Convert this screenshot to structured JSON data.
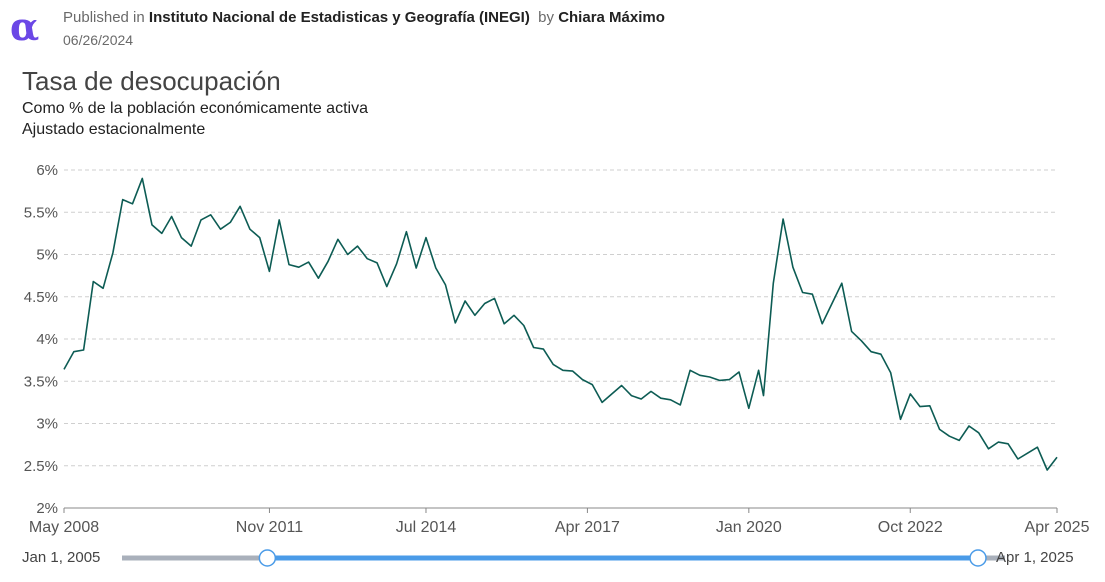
{
  "header": {
    "logo_icon": "alpha-logo-icon",
    "published_prefix": "Published in",
    "publisher": "Instituto Nacional de Estadisticas y Geografía (INEGI)",
    "by_prefix": "by",
    "author": "Chiara Máximo",
    "date": "06/26/2024"
  },
  "range_slider": {
    "start_label": "Jan 1, 2005",
    "end_label": "Apr 1, 2025",
    "selected_start": "May 2008",
    "selected_end": "Apr 2025",
    "track_color": "#4a9be8",
    "inactive_color": "#a9b0bb"
  },
  "chart_data": {
    "type": "line",
    "title": "Tasa de desocupación",
    "subtitle": "Como % de la población económicamente activa",
    "subtitle2": "Ajustado estacionalmente",
    "xlabel": "",
    "ylabel": "",
    "line_color": "#0d5c54",
    "grid": true,
    "ylim": [
      2,
      6
    ],
    "yticks": [
      "2%",
      "2.5%",
      "3%",
      "3.5%",
      "4%",
      "4.5%",
      "5%",
      "5.5%",
      "6%"
    ],
    "xticks": [
      "May 2008",
      "Nov 2011",
      "Jul 2014",
      "Apr 2017",
      "Jan 2020",
      "Oct 2022",
      "Apr 2025"
    ],
    "xlim": [
      "2008-05",
      "2025-04"
    ],
    "series": [
      {
        "x": [
          "2008-05",
          "2008-07",
          "2008-09",
          "2008-11",
          "2009-01",
          "2009-03",
          "2009-05",
          "2009-07",
          "2009-09",
          "2009-11",
          "2010-01",
          "2010-03",
          "2010-05",
          "2010-07",
          "2010-09",
          "2010-11",
          "2011-01",
          "2011-03",
          "2011-05",
          "2011-07",
          "2011-09",
          "2011-11",
          "2012-01",
          "2012-03",
          "2012-05",
          "2012-07",
          "2012-09",
          "2012-11",
          "2013-01",
          "2013-03",
          "2013-05",
          "2013-07",
          "2013-09",
          "2013-11",
          "2014-01",
          "2014-03",
          "2014-05",
          "2014-07",
          "2014-09",
          "2014-11",
          "2015-01",
          "2015-03",
          "2015-05",
          "2015-07",
          "2015-09",
          "2015-11",
          "2016-01",
          "2016-03",
          "2016-05",
          "2016-07",
          "2016-09",
          "2016-11",
          "2017-01",
          "2017-03",
          "2017-05",
          "2017-07",
          "2017-09",
          "2017-11",
          "2018-01",
          "2018-03",
          "2018-05",
          "2018-07",
          "2018-09",
          "2018-11",
          "2019-01",
          "2019-03",
          "2019-05",
          "2019-07",
          "2019-09",
          "2019-11",
          "2020-01",
          "2020-03",
          "2020-04",
          "2020-06",
          "2020-08",
          "2020-10",
          "2020-12",
          "2021-02",
          "2021-04",
          "2021-06",
          "2021-08",
          "2021-10",
          "2021-12",
          "2022-02",
          "2022-04",
          "2022-06",
          "2022-08",
          "2022-10",
          "2022-12",
          "2023-02",
          "2023-04",
          "2023-06",
          "2023-08",
          "2023-10",
          "2023-12",
          "2024-02",
          "2024-04",
          "2024-06",
          "2024-08",
          "2024-10",
          "2024-12",
          "2025-02",
          "2025-04"
        ],
        "values": [
          3.64,
          3.85,
          3.87,
          4.68,
          4.6,
          5.02,
          5.65,
          5.6,
          5.9,
          5.35,
          5.25,
          5.45,
          5.2,
          5.1,
          5.41,
          5.47,
          5.3,
          5.38,
          5.57,
          5.3,
          5.2,
          4.8,
          5.41,
          4.88,
          4.85,
          4.91,
          4.72,
          4.92,
          5.18,
          5.0,
          5.1,
          4.95,
          4.9,
          4.62,
          4.89,
          5.27,
          4.84,
          5.2,
          4.84,
          4.64,
          4.19,
          4.45,
          4.28,
          4.42,
          4.48,
          4.18,
          4.28,
          4.16,
          3.9,
          3.88,
          3.7,
          3.63,
          3.62,
          3.52,
          3.46,
          3.25,
          3.35,
          3.45,
          3.33,
          3.29,
          3.38,
          3.3,
          3.28,
          3.22,
          3.63,
          3.57,
          3.55,
          3.51,
          3.52,
          3.61,
          3.18,
          3.63,
          3.33,
          4.66,
          5.42,
          4.85,
          4.55,
          4.53,
          4.18,
          4.42,
          4.66,
          4.09,
          3.98,
          3.85,
          3.82,
          3.6,
          3.05,
          3.35,
          3.2,
          3.21,
          2.93,
          2.85,
          2.8,
          2.97,
          2.89,
          2.7,
          2.78,
          2.76,
          2.58,
          2.65,
          2.72,
          2.45,
          2.6
        ]
      }
    ]
  }
}
